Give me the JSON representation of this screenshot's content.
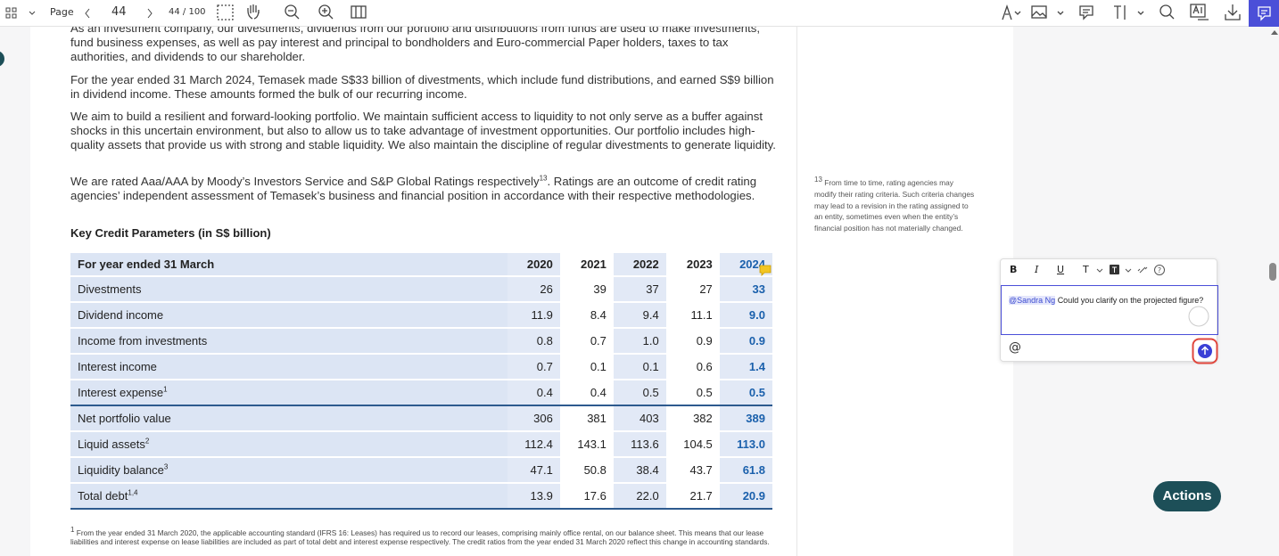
{
  "toolbar": {
    "page_label": "Page",
    "page_number": "44",
    "page_count": "44 / 100"
  },
  "document": {
    "paragraphs": [
      {
        "text": "As an investment company, our divestments, dividends from our portfolio and distributions from funds are used to make investments, fund business expenses, as well as pay interest and principal to bondholders and Euro-commercial Paper holders, taxes to tax authorities, and dividends to our shareholder."
      },
      {
        "text": "For the year ended 31 March 2024, Temasek made S$33 billion of divestments, which include fund distributions, and earned S$9 billion in dividend income. These amounts formed the bulk of our recurring income."
      },
      {
        "text": "We aim to build a resilient and forward-looking portfolio. We maintain sufficient access to liquidity to not only serve as a buffer against shocks in this uncertain environment, but also to allow us to take advantage of investment opportunities. Our portfolio includes high-quality assets that provide us with strong and stable liquidity. We also maintain the discipline of regular divestments to generate liquidity."
      },
      {
        "text": "We are rated Aaa/AAA by Moody’s Investors Service and S&P Global Ratings respectively",
        "sup": "13",
        "text_after": ". Ratings are an outcome of credit rating agencies’ independent assessment of Temasek’s business and financial position in accordance with their respective methodologies."
      }
    ],
    "table_title": "Key Credit Parameters (in S$ billion)",
    "table": {
      "header": [
        "For year ended 31 March",
        "2020",
        "2021",
        "2022",
        "2023",
        "2024"
      ],
      "rows": [
        {
          "label": "Divestments",
          "values": [
            "26",
            "39",
            "37",
            "27",
            "33"
          ]
        },
        {
          "label": "Dividend income",
          "values": [
            "11.9",
            "8.4",
            "9.4",
            "11.1",
            "9.0"
          ]
        },
        {
          "label": "Income from investments",
          "values": [
            "0.8",
            "0.7",
            "1.0",
            "0.9",
            "0.9"
          ]
        },
        {
          "label": "Interest income",
          "values": [
            "0.7",
            "0.1",
            "0.1",
            "0.6",
            "1.4"
          ]
        },
        {
          "label": "Interest expense",
          "note": "1",
          "values": [
            "0.4",
            "0.4",
            "0.5",
            "0.5",
            "0.5"
          ]
        },
        {
          "label": "Net portfolio value",
          "values": [
            "306",
            "381",
            "403",
            "382",
            "389"
          ]
        },
        {
          "label": "Liquid assets",
          "note": "2",
          "values": [
            "112.4",
            "143.1",
            "113.6",
            "104.5",
            "113.0"
          ]
        },
        {
          "label": "Liquidity balance",
          "note": "3",
          "values": [
            "47.1",
            "50.8",
            "38.4",
            "43.7",
            "61.8"
          ]
        },
        {
          "label": "Total debt",
          "note": "1,4",
          "values": [
            "13.9",
            "17.6",
            "22.0",
            "21.7",
            "20.9"
          ]
        }
      ]
    },
    "footnote": {
      "sup": "1",
      "text": "From the year ended 31 March 2020, the applicable accounting standard (IFRS 16: Leases) has required us to record our leases, comprising mainly office rental, on our balance sheet. This means that our lease liabilities and interest expense on lease liabilities are included as part of total debt and interest expense respectively. The credit ratios from the year ended 31 March 2020 reflect this change in accounting standards."
    },
    "margin_note": {
      "sup": "13",
      "text": "From time to time, rating agencies may modify their rating criteria. Such criteria changes may lead to a revision in the rating assigned to an entity, sometimes even when the entity’s financial position has not materially changed."
    }
  },
  "comment": {
    "format_buttons": [
      "B",
      "I",
      "U",
      "T"
    ],
    "mention": "@Sandra Ng",
    "text": "Could you clarify on the projected figure?",
    "at_button": "@"
  },
  "actions_button": "Actions"
}
